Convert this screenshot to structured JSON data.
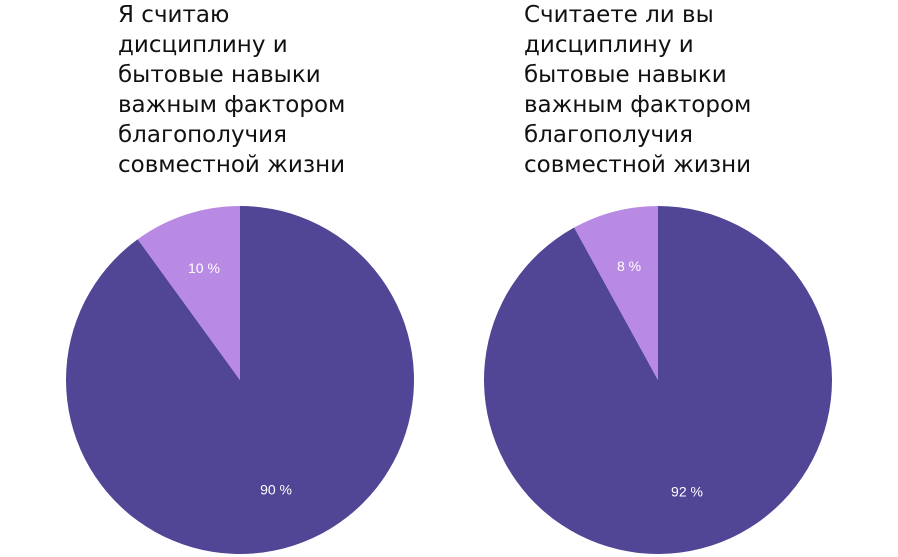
{
  "chart_data": [
    {
      "type": "pie",
      "title": "Я считаю дисциплину и бытовые навыки важным фактором благополучия совместной жизни",
      "values": [
        90,
        10
      ],
      "value_labels": [
        "90 %",
        "10 %"
      ],
      "colors": [
        "#514595",
        "#b98ae3"
      ]
    },
    {
      "type": "pie",
      "title": "Считаете ли вы дисциплину и бытовые навыки важным фактором благополучия совместной жизни",
      "values": [
        92,
        8
      ],
      "value_labels": [
        "92 %",
        "8 %"
      ],
      "colors": [
        "#514595",
        "#b98ae3"
      ]
    }
  ]
}
